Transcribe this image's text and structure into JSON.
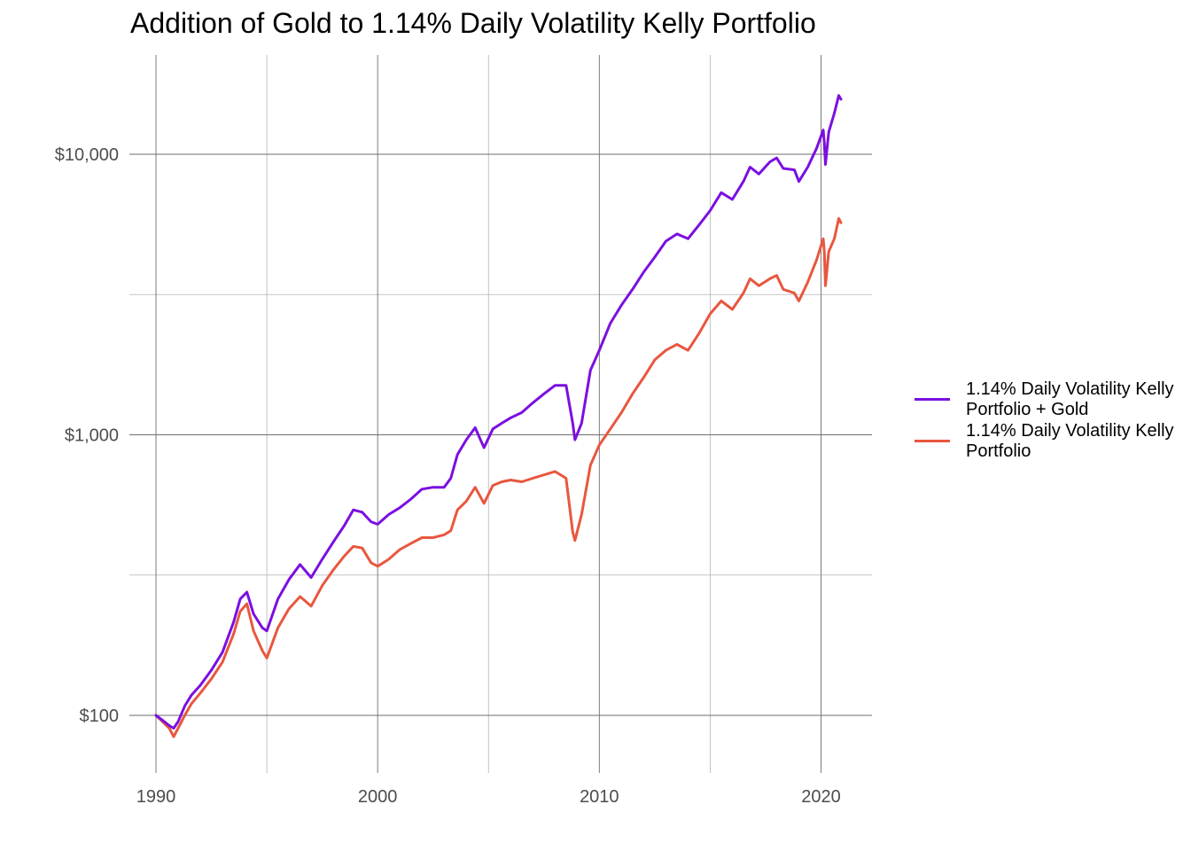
{
  "chart_data": {
    "type": "line",
    "title": "Addition of Gold to 1.14% Daily Volatility Kelly Portfolio",
    "xlabel": "",
    "ylabel": "",
    "y_scale": "log10",
    "ylim": [
      70,
      25000
    ],
    "xlim": [
      1988.8,
      2022.3
    ],
    "x_ticks": [
      1990,
      2000,
      2010,
      2020
    ],
    "x_tick_labels": [
      "1990",
      "2000",
      "2010",
      "2020"
    ],
    "y_ticks": [
      100,
      1000,
      10000
    ],
    "y_tick_labels": [
      "$100",
      "$1,000",
      "$10,000"
    ],
    "grid": true,
    "legend_position": "right",
    "series": [
      {
        "name": "1.14% Daily Volatility Kelly Portfolio + Gold",
        "color": "#7b0fe0",
        "points": [
          [
            1990.0,
            100
          ],
          [
            1990.3,
            96
          ],
          [
            1990.6,
            92
          ],
          [
            1990.8,
            90
          ],
          [
            1991.0,
            95
          ],
          [
            1991.3,
            108
          ],
          [
            1991.6,
            118
          ],
          [
            1992.0,
            128
          ],
          [
            1992.5,
            145
          ],
          [
            1993.0,
            168
          ],
          [
            1993.5,
            215
          ],
          [
            1993.8,
            260
          ],
          [
            1994.1,
            275
          ],
          [
            1994.4,
            230
          ],
          [
            1994.8,
            205
          ],
          [
            1995.0,
            200
          ],
          [
            1995.5,
            260
          ],
          [
            1996.0,
            305
          ],
          [
            1996.5,
            345
          ],
          [
            1997.0,
            310
          ],
          [
            1997.5,
            360
          ],
          [
            1998.0,
            415
          ],
          [
            1998.5,
            475
          ],
          [
            1998.9,
            540
          ],
          [
            1999.3,
            530
          ],
          [
            1999.7,
            490
          ],
          [
            2000.0,
            480
          ],
          [
            2000.5,
            520
          ],
          [
            2001.0,
            550
          ],
          [
            2001.5,
            590
          ],
          [
            2002.0,
            640
          ],
          [
            2002.5,
            650
          ],
          [
            2003.0,
            650
          ],
          [
            2003.3,
            700
          ],
          [
            2003.6,
            850
          ],
          [
            2004.0,
            960
          ],
          [
            2004.4,
            1060
          ],
          [
            2004.8,
            900
          ],
          [
            2005.2,
            1050
          ],
          [
            2005.6,
            1100
          ],
          [
            2006.0,
            1150
          ],
          [
            2006.5,
            1200
          ],
          [
            2007.0,
            1300
          ],
          [
            2007.5,
            1400
          ],
          [
            2008.0,
            1500
          ],
          [
            2008.5,
            1500
          ],
          [
            2008.8,
            1100
          ],
          [
            2008.9,
            960
          ],
          [
            2009.2,
            1100
          ],
          [
            2009.6,
            1700
          ],
          [
            2010.0,
            2000
          ],
          [
            2010.5,
            2500
          ],
          [
            2011.0,
            2900
          ],
          [
            2011.5,
            3300
          ],
          [
            2012.0,
            3800
          ],
          [
            2012.5,
            4300
          ],
          [
            2013.0,
            4900
          ],
          [
            2013.5,
            5200
          ],
          [
            2014.0,
            5000
          ],
          [
            2014.5,
            5600
          ],
          [
            2015.0,
            6300
          ],
          [
            2015.5,
            7300
          ],
          [
            2016.0,
            6900
          ],
          [
            2016.5,
            8000
          ],
          [
            2016.8,
            9000
          ],
          [
            2017.2,
            8500
          ],
          [
            2017.7,
            9400
          ],
          [
            2018.0,
            9700
          ],
          [
            2018.3,
            8900
          ],
          [
            2018.8,
            8800
          ],
          [
            2019.0,
            8000
          ],
          [
            2019.4,
            9000
          ],
          [
            2019.8,
            10500
          ],
          [
            2020.1,
            12200
          ],
          [
            2020.15,
            11000
          ],
          [
            2020.2,
            9200
          ],
          [
            2020.35,
            12000
          ],
          [
            2020.6,
            14000
          ],
          [
            2020.8,
            16200
          ],
          [
            2020.9,
            15700
          ]
        ]
      },
      {
        "name": "1.14% Daily Volatility Kelly Portfolio",
        "color": "#e8573f",
        "points": [
          [
            1990.0,
            100
          ],
          [
            1990.3,
            95
          ],
          [
            1990.6,
            90
          ],
          [
            1990.8,
            84
          ],
          [
            1991.0,
            90
          ],
          [
            1991.3,
            100
          ],
          [
            1991.6,
            110
          ],
          [
            1992.0,
            120
          ],
          [
            1992.5,
            135
          ],
          [
            1993.0,
            155
          ],
          [
            1993.5,
            195
          ],
          [
            1993.8,
            235
          ],
          [
            1994.1,
            250
          ],
          [
            1994.4,
            200
          ],
          [
            1994.8,
            170
          ],
          [
            1995.0,
            160
          ],
          [
            1995.5,
            205
          ],
          [
            1996.0,
            240
          ],
          [
            1996.5,
            265
          ],
          [
            1997.0,
            245
          ],
          [
            1997.5,
            290
          ],
          [
            1998.0,
            330
          ],
          [
            1998.5,
            370
          ],
          [
            1998.9,
            400
          ],
          [
            1999.3,
            395
          ],
          [
            1999.7,
            350
          ],
          [
            2000.0,
            340
          ],
          [
            2000.5,
            360
          ],
          [
            2001.0,
            390
          ],
          [
            2001.5,
            410
          ],
          [
            2002.0,
            430
          ],
          [
            2002.5,
            430
          ],
          [
            2003.0,
            440
          ],
          [
            2003.3,
            455
          ],
          [
            2003.6,
            540
          ],
          [
            2004.0,
            580
          ],
          [
            2004.4,
            650
          ],
          [
            2004.8,
            570
          ],
          [
            2005.2,
            660
          ],
          [
            2005.6,
            680
          ],
          [
            2006.0,
            690
          ],
          [
            2006.5,
            680
          ],
          [
            2007.0,
            700
          ],
          [
            2007.5,
            720
          ],
          [
            2008.0,
            740
          ],
          [
            2008.5,
            700
          ],
          [
            2008.8,
            450
          ],
          [
            2008.9,
            420
          ],
          [
            2009.2,
            520
          ],
          [
            2009.6,
            780
          ],
          [
            2010.0,
            920
          ],
          [
            2010.5,
            1050
          ],
          [
            2011.0,
            1200
          ],
          [
            2011.5,
            1400
          ],
          [
            2012.0,
            1600
          ],
          [
            2012.5,
            1850
          ],
          [
            2013.0,
            2000
          ],
          [
            2013.5,
            2100
          ],
          [
            2014.0,
            2000
          ],
          [
            2014.5,
            2300
          ],
          [
            2015.0,
            2700
          ],
          [
            2015.5,
            3000
          ],
          [
            2016.0,
            2800
          ],
          [
            2016.5,
            3200
          ],
          [
            2016.8,
            3600
          ],
          [
            2017.2,
            3400
          ],
          [
            2017.7,
            3600
          ],
          [
            2018.0,
            3700
          ],
          [
            2018.3,
            3300
          ],
          [
            2018.8,
            3200
          ],
          [
            2019.0,
            3000
          ],
          [
            2019.4,
            3500
          ],
          [
            2019.8,
            4200
          ],
          [
            2020.1,
            5000
          ],
          [
            2020.15,
            4500
          ],
          [
            2020.2,
            3400
          ],
          [
            2020.35,
            4500
          ],
          [
            2020.6,
            5000
          ],
          [
            2020.8,
            5900
          ],
          [
            2020.9,
            5700
          ]
        ]
      }
    ]
  },
  "legend": {
    "items": [
      {
        "label": "1.14% Daily Volatility Kelly Portfolio + Gold",
        "color": "#7b0fe0"
      },
      {
        "label": "1.14% Daily Volatility Kelly Portfolio",
        "color": "#e8573f"
      }
    ]
  }
}
